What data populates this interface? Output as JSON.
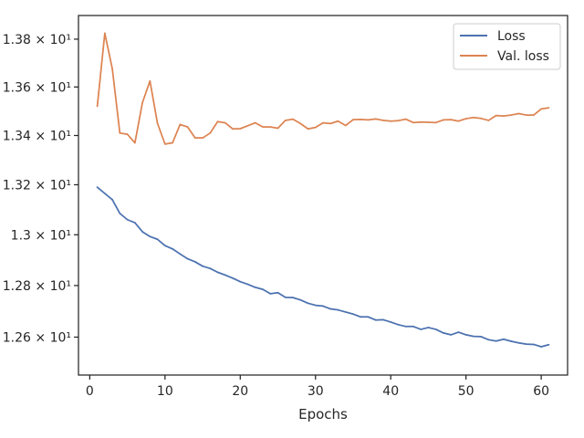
{
  "chart_data": {
    "type": "line",
    "xlabel": "Epochs",
    "ylabel": "",
    "xlim": [
      -1.5,
      63.5
    ],
    "ylim": [
      12.455,
      13.9
    ],
    "y_scale": "log",
    "grid": false,
    "legend_position": "top-right",
    "x_ticks": [
      0,
      10,
      20,
      30,
      40,
      50,
      60
    ],
    "x_tick_labels": [
      "0",
      "10",
      "20",
      "30",
      "40",
      "50",
      "60"
    ],
    "y_ticks": [
      12.6,
      12.8,
      13.0,
      13.2,
      13.4,
      13.6,
      13.8
    ],
    "y_tick_labels": [
      "1.26 × 10¹",
      "1.28 × 10¹",
      "1.3 × 10¹",
      "1.32 × 10¹",
      "1.34 × 10¹",
      "1.36 × 10¹",
      "1.38 × 10¹"
    ],
    "x": [
      1,
      2,
      3,
      4,
      5,
      6,
      7,
      8,
      9,
      10,
      11,
      12,
      13,
      14,
      15,
      16,
      17,
      18,
      19,
      20,
      21,
      22,
      23,
      24,
      25,
      26,
      27,
      28,
      29,
      30,
      31,
      32,
      33,
      34,
      35,
      36,
      37,
      38,
      39,
      40,
      41,
      42,
      43,
      44,
      45,
      46,
      47,
      48,
      49,
      50,
      51,
      52,
      53,
      54,
      55,
      56,
      57,
      58,
      59,
      60,
      61
    ],
    "series": [
      {
        "name": "Loss",
        "color": "#4c72b0",
        "values": [
          13.19,
          13.165,
          13.14,
          13.085,
          13.06,
          13.048,
          13.012,
          12.993,
          12.982,
          12.957,
          12.944,
          12.924,
          12.905,
          12.893,
          12.876,
          12.867,
          12.852,
          12.841,
          12.829,
          12.815,
          12.805,
          12.793,
          12.785,
          12.768,
          12.772,
          12.754,
          12.753,
          12.744,
          12.731,
          12.723,
          12.72,
          12.709,
          12.705,
          12.697,
          12.689,
          12.678,
          12.678,
          12.666,
          12.667,
          12.658,
          12.648,
          12.641,
          12.641,
          12.63,
          12.637,
          12.63,
          12.616,
          12.609,
          12.619,
          12.609,
          12.603,
          12.602,
          12.59,
          12.585,
          12.592,
          12.584,
          12.578,
          12.573,
          12.572,
          12.563,
          12.571
        ]
      },
      {
        "name": "Val. loss",
        "color": "#dd8452",
        "values": [
          13.52,
          13.825,
          13.675,
          13.41,
          13.405,
          13.37,
          13.535,
          13.625,
          13.45,
          13.365,
          13.37,
          13.445,
          13.435,
          13.39,
          13.39,
          13.41,
          13.457,
          13.452,
          13.427,
          13.428,
          13.44,
          13.452,
          13.435,
          13.435,
          13.43,
          13.462,
          13.467,
          13.449,
          13.427,
          13.433,
          13.452,
          13.449,
          13.459,
          13.441,
          13.465,
          13.466,
          13.464,
          13.468,
          13.462,
          13.459,
          13.461,
          13.467,
          13.453,
          13.455,
          13.454,
          13.453,
          13.464,
          13.465,
          13.459,
          13.469,
          13.474,
          13.47,
          13.462,
          13.482,
          13.48,
          13.484,
          13.49,
          13.484,
          13.484,
          13.509,
          13.514
        ]
      }
    ]
  }
}
